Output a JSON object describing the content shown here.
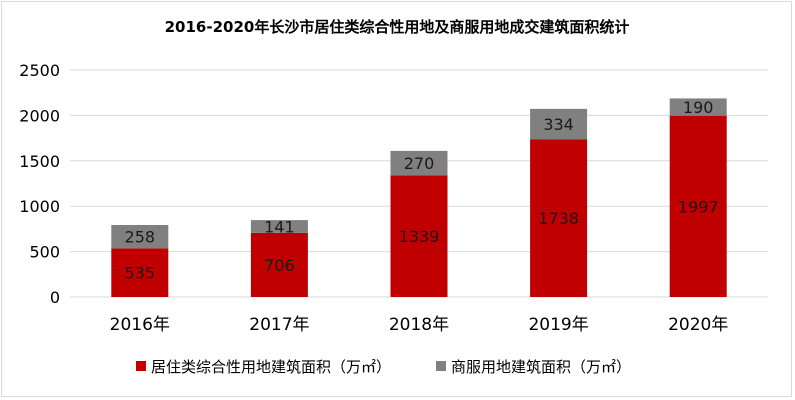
{
  "chart_data": {
    "type": "bar",
    "stacked": true,
    "title": "2016-2020年长沙市居住类综合性用地及商服用地成交建筑面积统计",
    "categories": [
      "2016年",
      "2017年",
      "2018年",
      "2019年",
      "2020年"
    ],
    "series": [
      {
        "name": "居住类综合性用地建筑面积（万㎡）",
        "values": [
          535,
          706,
          1339,
          1738,
          1997
        ],
        "color": "#c00000"
      },
      {
        "name": "商服用地建筑面积（万㎡）",
        "values": [
          258,
          141,
          270,
          334,
          190
        ],
        "color": "#808080"
      }
    ],
    "ylim": [
      0,
      2500
    ],
    "yticks": [
      0,
      500,
      1000,
      1500,
      2000,
      2500
    ],
    "grid": true,
    "legend_position": "bottom"
  }
}
